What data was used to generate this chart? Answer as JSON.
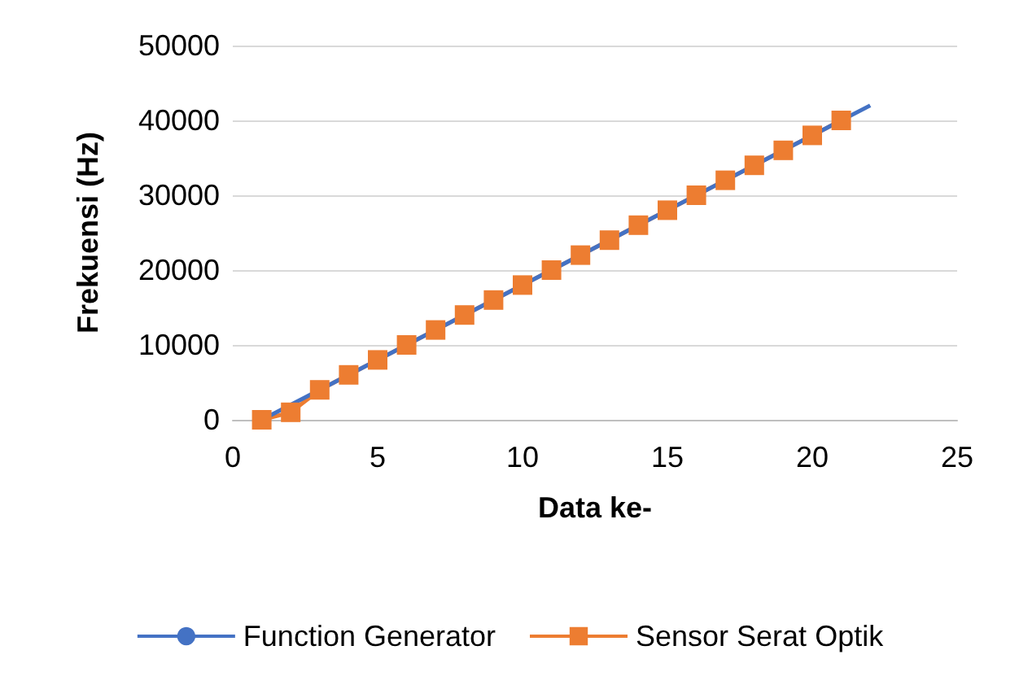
{
  "chart_data": {
    "type": "line",
    "xlabel": "Data ke-",
    "ylabel": "Frekuensi (Hz)",
    "xlim": [
      0,
      25
    ],
    "xticks": [
      0,
      5,
      10,
      15,
      20,
      25
    ],
    "ylim": [
      0,
      50000
    ],
    "yticks": [
      0,
      10000,
      20000,
      30000,
      40000,
      50000
    ],
    "grid": "y",
    "legend": "bottom",
    "series": [
      {
        "name": "Sensor Serat Optik",
        "color": "#ed7d31",
        "marker": "square",
        "x": [
          1,
          2,
          3,
          4,
          5,
          6,
          7,
          8,
          9,
          10,
          11,
          12,
          13,
          14,
          15,
          16,
          17,
          18,
          19,
          20,
          21
        ],
        "values": [
          0,
          1000,
          4000,
          6000,
          8000,
          10000,
          12000,
          14000,
          16000,
          18000,
          20000,
          22000,
          24000,
          26000,
          28000,
          30000,
          32000,
          34000,
          36000,
          38000,
          40000
        ]
      },
      {
        "name": "Function Generator",
        "color": "#4472c4",
        "marker": "none",
        "x": [
          1,
          22
        ],
        "values": [
          0,
          42000
        ]
      }
    ]
  }
}
